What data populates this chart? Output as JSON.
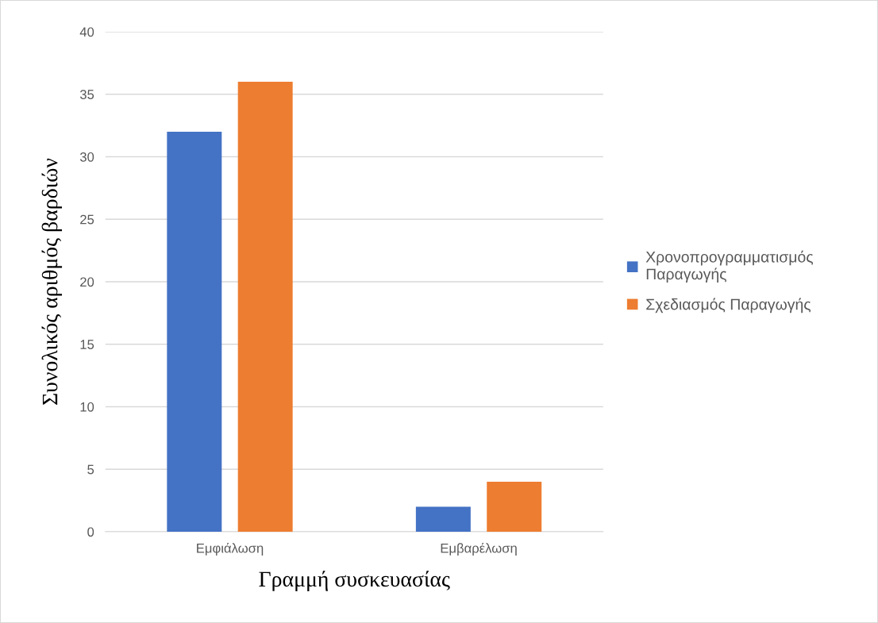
{
  "chart_data": {
    "type": "bar",
    "xlabel": "Γραμμή συσκευασίας",
    "ylabel": "Συνολικός αριθμός βαρδιών",
    "categories": [
      "Εμφιάλωση",
      "Εμβαρέλωση"
    ],
    "series": [
      {
        "name": "Χρονοπρογραμματισμός\nΠαραγωγής",
        "color": "#4472c4",
        "values": [
          32,
          2
        ]
      },
      {
        "name": "Σχεδιασμός Παραγωγής",
        "color": "#ed7d31",
        "values": [
          36,
          4
        ]
      }
    ],
    "ylim": [
      0,
      40
    ],
    "yticks": [
      0,
      5,
      10,
      15,
      20,
      25,
      30,
      35,
      40
    ],
    "grid": "y",
    "legend": "right"
  }
}
